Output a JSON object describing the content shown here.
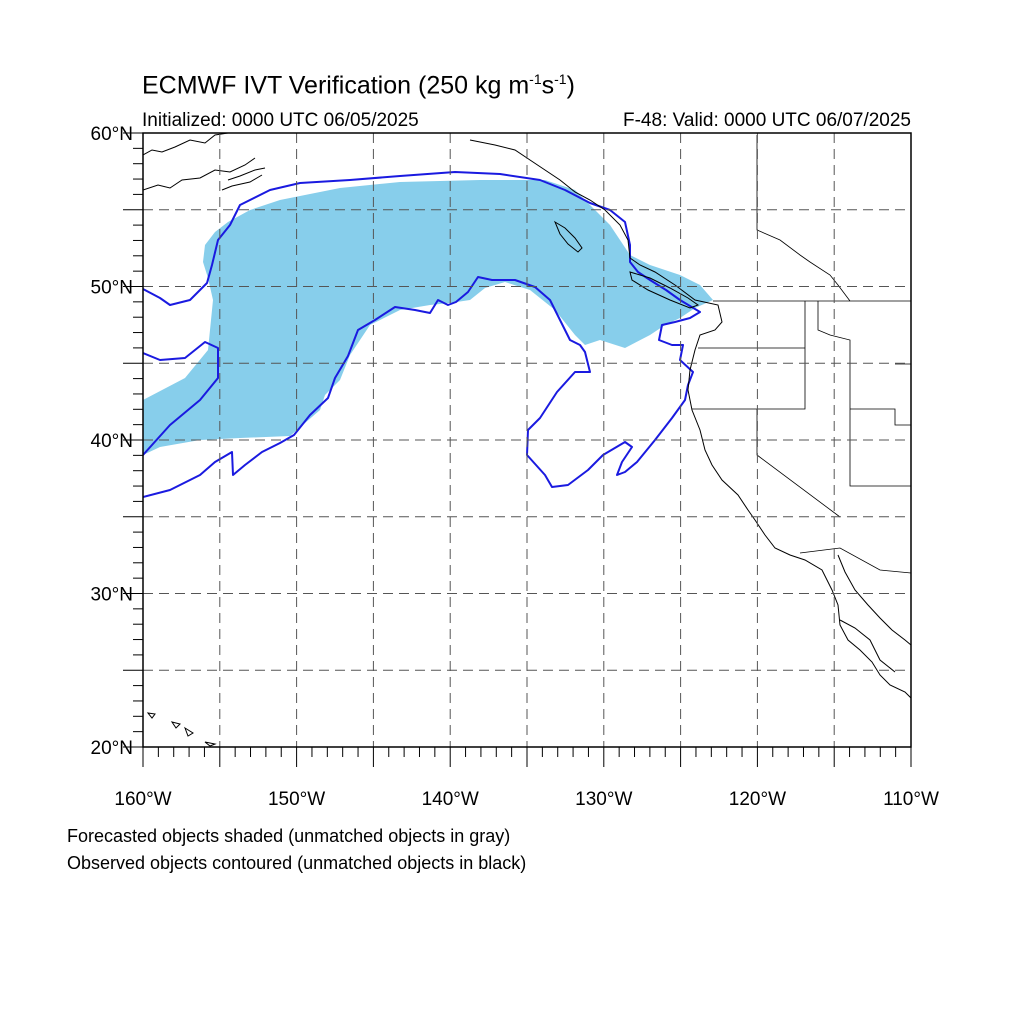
{
  "title": {
    "prefix": "ECMWF IVT Verification (250 kg m",
    "exp1": "-1",
    "mid": "s",
    "exp2": "-1",
    "suffix": ")"
  },
  "init_label": "Initialized: 0000 UTC 06/05/2025",
  "valid_label": "F-48: Valid: 0000 UTC 06/07/2025",
  "map": {
    "lon_range": [
      -160,
      -110
    ],
    "lat_range": [
      20,
      60
    ],
    "lon_ticks": [
      {
        "lon": -160,
        "label": "160°W"
      },
      {
        "lon": -150,
        "label": "150°W"
      },
      {
        "lon": -140,
        "label": "140°W"
      },
      {
        "lon": -130,
        "label": "130°W"
      },
      {
        "lon": -120,
        "label": "120°W"
      },
      {
        "lon": -110,
        "label": "110°W"
      }
    ],
    "lat_ticks": [
      {
        "lat": 20,
        "label": "20°N"
      },
      {
        "lat": 30,
        "label": "30°N"
      },
      {
        "lat": 40,
        "label": "40°N"
      },
      {
        "lat": 50,
        "label": "50°N"
      },
      {
        "lat": 60,
        "label": "60°N"
      }
    ],
    "gridline_lons": [
      -155,
      -150,
      -145,
      -140,
      -135,
      -130,
      -125,
      -120,
      -115
    ],
    "gridline_lats": [
      25,
      30,
      35,
      40,
      45,
      50,
      55
    ],
    "forecast_color": "#87ceeb",
    "observed_color": "#1a1ae0"
  },
  "footnotes": [
    "Forecasted objects shaded (unmatched objects in gray)",
    "Observed objects contoured (unmatched objects in black)"
  ]
}
